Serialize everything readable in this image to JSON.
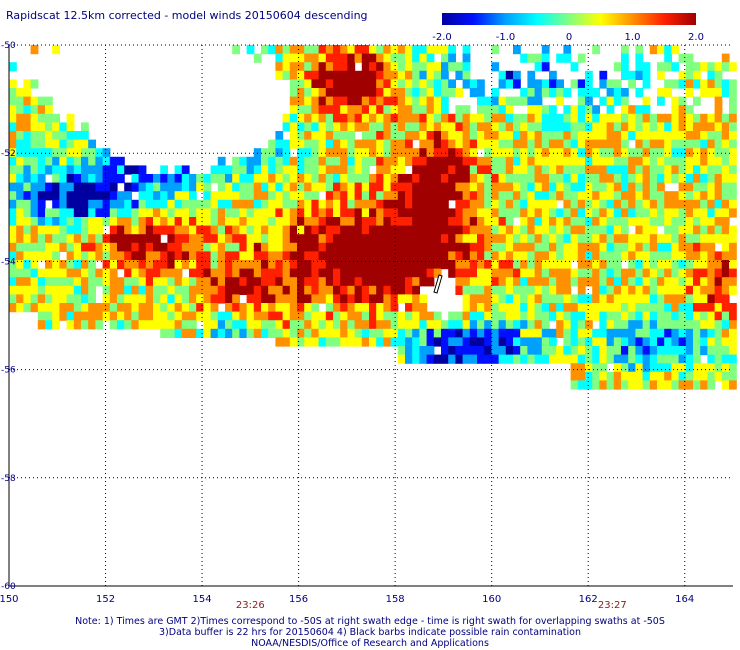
{
  "title": "Rapidscat 12.5km corrected - model winds 20150604 descending",
  "colorbar": {
    "ticks": [
      "-2.0",
      "-1.0",
      "0",
      "1.0",
      "2.0"
    ],
    "tick_values": [
      -2.0,
      -1.0,
      0.0,
      1.0,
      2.0
    ],
    "colors": [
      "#0000a0",
      "#0010ff",
      "#00a0ff",
      "#00ffff",
      "#80ff80",
      "#ffff00",
      "#ff9000",
      "#ff2000",
      "#a00000"
    ]
  },
  "map": {
    "lon_range": [
      150,
      165
    ],
    "lat_range": [
      -60,
      -50
    ],
    "lon_ticks": [
      "150",
      "152",
      "154",
      "156",
      "158",
      "160",
      "162",
      "164"
    ],
    "lon_tick_values": [
      150,
      152,
      154,
      156,
      158,
      160,
      162,
      164
    ],
    "lat_ticks": [
      "-50",
      "-52",
      "-54",
      "-56",
      "-58",
      "-60"
    ],
    "lat_tick_values": [
      -50,
      -52,
      -54,
      -56,
      -58,
      -60
    ],
    "grid": "dotted"
  },
  "time_labels": [
    {
      "text": "23:26",
      "lon": 155.0
    },
    {
      "text": "23:27",
      "lon": 162.5
    }
  ],
  "notes": {
    "line1": "Note: 1) Times are GMT 2)Times correspond to -50S at right swath edge - time is right swath for overlapping swaths at -50S",
    "line2": "3)Data buffer is 22 hrs for 20150604 4) Black barbs indicate possible rain contamination",
    "line3": "NOAA/NESDIS/Office of Research and Applications"
  }
}
